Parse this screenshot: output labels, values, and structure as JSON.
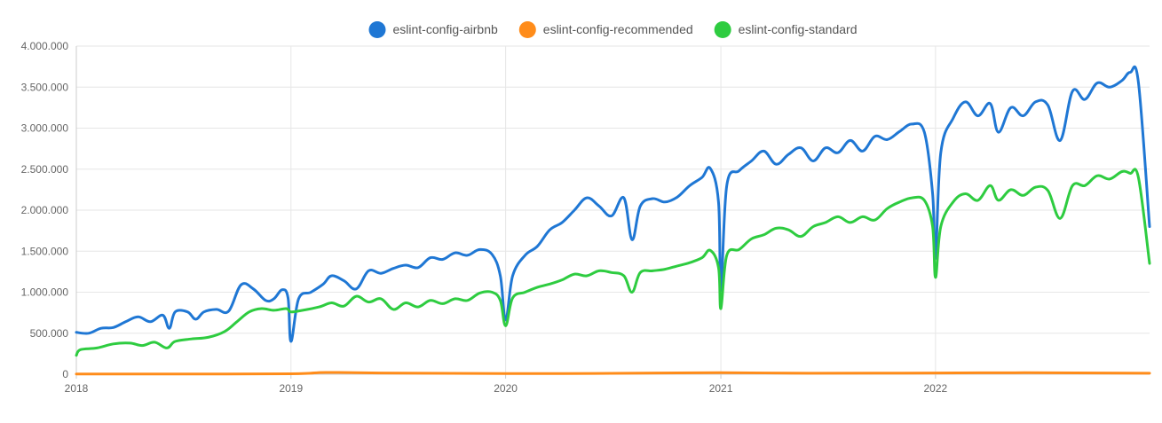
{
  "chart_data": {
    "type": "line",
    "title": "",
    "xlabel": "",
    "ylabel": "",
    "ylim": [
      0,
      4000000
    ],
    "xlim": [
      "2018-01-01",
      "2022-12-31"
    ],
    "grid": true,
    "legend_position": "top-center",
    "y_ticks": [
      {
        "value": 0,
        "label": "0"
      },
      {
        "value": 500000,
        "label": "500.000"
      },
      {
        "value": 1000000,
        "label": "1.000.000"
      },
      {
        "value": 1500000,
        "label": "1.500.000"
      },
      {
        "value": 2000000,
        "label": "2.000.000"
      },
      {
        "value": 2500000,
        "label": "2.500.000"
      },
      {
        "value": 3000000,
        "label": "3.000.000"
      },
      {
        "value": 3500000,
        "label": "3.500.000"
      },
      {
        "value": 4000000,
        "label": "4.000.000"
      }
    ],
    "x_ticks": [
      {
        "value": "2018-01-01",
        "label": "2018"
      },
      {
        "value": "2019-01-01",
        "label": "2019"
      },
      {
        "value": "2020-01-01",
        "label": "2020"
      },
      {
        "value": "2021-01-01",
        "label": "2021"
      },
      {
        "value": "2022-01-01",
        "label": "2022"
      }
    ],
    "series": [
      {
        "name": "eslint-config-airbnb",
        "color": "#1f77d4",
        "points": [
          [
            "2018-01-01",
            510000
          ],
          [
            "2018-01-22",
            500000
          ],
          [
            "2018-02-12",
            560000
          ],
          [
            "2018-03-05",
            570000
          ],
          [
            "2018-03-26",
            640000
          ],
          [
            "2018-04-16",
            700000
          ],
          [
            "2018-05-07",
            640000
          ],
          [
            "2018-05-28",
            720000
          ],
          [
            "2018-06-08",
            560000
          ],
          [
            "2018-06-18",
            760000
          ],
          [
            "2018-07-09",
            760000
          ],
          [
            "2018-07-23",
            670000
          ],
          [
            "2018-08-06",
            760000
          ],
          [
            "2018-08-27",
            790000
          ],
          [
            "2018-09-17",
            770000
          ],
          [
            "2018-10-08",
            1090000
          ],
          [
            "2018-10-29",
            1040000
          ],
          [
            "2018-11-19",
            900000
          ],
          [
            "2018-12-03",
            920000
          ],
          [
            "2018-12-17",
            1030000
          ],
          [
            "2018-12-27",
            930000
          ],
          [
            "2019-01-01",
            400000
          ],
          [
            "2019-01-14",
            920000
          ],
          [
            "2019-02-04",
            1000000
          ],
          [
            "2019-02-25",
            1100000
          ],
          [
            "2019-03-11",
            1200000
          ],
          [
            "2019-04-01",
            1140000
          ],
          [
            "2019-04-22",
            1040000
          ],
          [
            "2019-05-13",
            1260000
          ],
          [
            "2019-06-03",
            1230000
          ],
          [
            "2019-06-24",
            1290000
          ],
          [
            "2019-07-15",
            1330000
          ],
          [
            "2019-08-05",
            1300000
          ],
          [
            "2019-08-26",
            1420000
          ],
          [
            "2019-09-16",
            1400000
          ],
          [
            "2019-10-07",
            1480000
          ],
          [
            "2019-10-28",
            1450000
          ],
          [
            "2019-11-18",
            1520000
          ],
          [
            "2019-12-09",
            1460000
          ],
          [
            "2019-12-23",
            1200000
          ],
          [
            "2020-01-01",
            660000
          ],
          [
            "2020-01-13",
            1200000
          ],
          [
            "2020-02-03",
            1450000
          ],
          [
            "2020-02-24",
            1560000
          ],
          [
            "2020-03-16",
            1760000
          ],
          [
            "2020-04-06",
            1850000
          ],
          [
            "2020-04-27",
            2000000
          ],
          [
            "2020-05-18",
            2150000
          ],
          [
            "2020-06-08",
            2050000
          ],
          [
            "2020-06-29",
            1930000
          ],
          [
            "2020-07-20",
            2150000
          ],
          [
            "2020-08-03",
            1640000
          ],
          [
            "2020-08-17",
            2050000
          ],
          [
            "2020-09-07",
            2140000
          ],
          [
            "2020-09-28",
            2100000
          ],
          [
            "2020-10-19",
            2160000
          ],
          [
            "2020-11-09",
            2300000
          ],
          [
            "2020-11-30",
            2400000
          ],
          [
            "2020-12-14",
            2510000
          ],
          [
            "2020-12-28",
            2100000
          ],
          [
            "2021-01-01",
            1020000
          ],
          [
            "2021-01-11",
            2300000
          ],
          [
            "2021-02-01",
            2480000
          ],
          [
            "2021-02-22",
            2600000
          ],
          [
            "2021-03-15",
            2720000
          ],
          [
            "2021-04-05",
            2560000
          ],
          [
            "2021-04-26",
            2680000
          ],
          [
            "2021-05-17",
            2760000
          ],
          [
            "2021-06-07",
            2600000
          ],
          [
            "2021-06-28",
            2760000
          ],
          [
            "2021-07-19",
            2700000
          ],
          [
            "2021-08-09",
            2850000
          ],
          [
            "2021-08-30",
            2720000
          ],
          [
            "2021-09-20",
            2900000
          ],
          [
            "2021-10-11",
            2860000
          ],
          [
            "2021-11-01",
            2960000
          ],
          [
            "2021-11-22",
            3050000
          ],
          [
            "2021-12-13",
            2950000
          ],
          [
            "2021-12-27",
            2200000
          ],
          [
            "2022-01-01",
            1420000
          ],
          [
            "2022-01-10",
            2700000
          ],
          [
            "2022-01-31",
            3120000
          ],
          [
            "2022-02-21",
            3320000
          ],
          [
            "2022-03-14",
            3150000
          ],
          [
            "2022-04-04",
            3300000
          ],
          [
            "2022-04-18",
            2950000
          ],
          [
            "2022-05-09",
            3250000
          ],
          [
            "2022-05-30",
            3150000
          ],
          [
            "2022-06-20",
            3320000
          ],
          [
            "2022-07-11",
            3280000
          ],
          [
            "2022-08-01",
            2850000
          ],
          [
            "2022-08-22",
            3450000
          ],
          [
            "2022-09-12",
            3350000
          ],
          [
            "2022-10-03",
            3550000
          ],
          [
            "2022-10-24",
            3500000
          ],
          [
            "2022-11-14",
            3580000
          ],
          [
            "2022-11-28",
            3680000
          ],
          [
            "2022-12-12",
            3560000
          ],
          [
            "2022-12-31",
            1800000
          ]
        ]
      },
      {
        "name": "eslint-config-recommended",
        "color": "#ff8c1a",
        "points": [
          [
            "2018-01-01",
            2000
          ],
          [
            "2018-06-01",
            3000
          ],
          [
            "2019-01-01",
            5000
          ],
          [
            "2019-03-01",
            22000
          ],
          [
            "2019-06-01",
            15000
          ],
          [
            "2020-01-01",
            8000
          ],
          [
            "2020-06-01",
            10000
          ],
          [
            "2021-01-01",
            18000
          ],
          [
            "2021-06-01",
            12000
          ],
          [
            "2022-01-01",
            15000
          ],
          [
            "2022-06-01",
            18000
          ],
          [
            "2022-12-31",
            12000
          ]
        ]
      },
      {
        "name": "eslint-config-standard",
        "color": "#2ecc40",
        "points": [
          [
            "2018-01-01",
            230000
          ],
          [
            "2018-01-08",
            300000
          ],
          [
            "2018-02-05",
            320000
          ],
          [
            "2018-03-05",
            370000
          ],
          [
            "2018-04-02",
            380000
          ],
          [
            "2018-04-23",
            350000
          ],
          [
            "2018-05-14",
            390000
          ],
          [
            "2018-06-04",
            320000
          ],
          [
            "2018-06-18",
            400000
          ],
          [
            "2018-07-16",
            430000
          ],
          [
            "2018-08-13",
            450000
          ],
          [
            "2018-09-10",
            520000
          ],
          [
            "2018-10-01",
            640000
          ],
          [
            "2018-10-22",
            760000
          ],
          [
            "2018-11-12",
            800000
          ],
          [
            "2018-12-03",
            780000
          ],
          [
            "2018-12-24",
            800000
          ],
          [
            "2019-01-01",
            760000
          ],
          [
            "2019-01-21",
            780000
          ],
          [
            "2019-02-18",
            820000
          ],
          [
            "2019-03-11",
            870000
          ],
          [
            "2019-04-01",
            830000
          ],
          [
            "2019-04-22",
            950000
          ],
          [
            "2019-05-13",
            880000
          ],
          [
            "2019-06-03",
            920000
          ],
          [
            "2019-06-24",
            790000
          ],
          [
            "2019-07-15",
            870000
          ],
          [
            "2019-08-05",
            820000
          ],
          [
            "2019-08-26",
            900000
          ],
          [
            "2019-09-16",
            860000
          ],
          [
            "2019-10-07",
            920000
          ],
          [
            "2019-10-28",
            900000
          ],
          [
            "2019-11-18",
            990000
          ],
          [
            "2019-12-09",
            1000000
          ],
          [
            "2019-12-23",
            900000
          ],
          [
            "2020-01-01",
            590000
          ],
          [
            "2020-01-13",
            930000
          ],
          [
            "2020-02-03",
            1000000
          ],
          [
            "2020-02-24",
            1060000
          ],
          [
            "2020-03-16",
            1100000
          ],
          [
            "2020-04-06",
            1150000
          ],
          [
            "2020-04-27",
            1220000
          ],
          [
            "2020-05-18",
            1200000
          ],
          [
            "2020-06-08",
            1260000
          ],
          [
            "2020-06-29",
            1240000
          ],
          [
            "2020-07-20",
            1200000
          ],
          [
            "2020-08-03",
            1000000
          ],
          [
            "2020-08-17",
            1240000
          ],
          [
            "2020-09-07",
            1260000
          ],
          [
            "2020-09-28",
            1280000
          ],
          [
            "2020-10-19",
            1320000
          ],
          [
            "2020-11-09",
            1360000
          ],
          [
            "2020-11-30",
            1420000
          ],
          [
            "2020-12-14",
            1510000
          ],
          [
            "2020-12-28",
            1300000
          ],
          [
            "2021-01-01",
            800000
          ],
          [
            "2021-01-11",
            1450000
          ],
          [
            "2021-02-01",
            1520000
          ],
          [
            "2021-02-22",
            1650000
          ],
          [
            "2021-03-15",
            1700000
          ],
          [
            "2021-04-05",
            1780000
          ],
          [
            "2021-04-26",
            1760000
          ],
          [
            "2021-05-17",
            1680000
          ],
          [
            "2021-06-07",
            1800000
          ],
          [
            "2021-06-28",
            1850000
          ],
          [
            "2021-07-19",
            1920000
          ],
          [
            "2021-08-09",
            1850000
          ],
          [
            "2021-08-30",
            1920000
          ],
          [
            "2021-09-20",
            1880000
          ],
          [
            "2021-10-11",
            2020000
          ],
          [
            "2021-11-01",
            2100000
          ],
          [
            "2021-11-22",
            2150000
          ],
          [
            "2021-12-13",
            2120000
          ],
          [
            "2021-12-27",
            1800000
          ],
          [
            "2022-01-01",
            1180000
          ],
          [
            "2022-01-10",
            1800000
          ],
          [
            "2022-01-31",
            2100000
          ],
          [
            "2022-02-21",
            2200000
          ],
          [
            "2022-03-14",
            2120000
          ],
          [
            "2022-04-04",
            2300000
          ],
          [
            "2022-04-18",
            2120000
          ],
          [
            "2022-05-09",
            2250000
          ],
          [
            "2022-05-30",
            2180000
          ],
          [
            "2022-06-20",
            2280000
          ],
          [
            "2022-07-11",
            2240000
          ],
          [
            "2022-08-01",
            1900000
          ],
          [
            "2022-08-22",
            2300000
          ],
          [
            "2022-09-12",
            2300000
          ],
          [
            "2022-10-03",
            2420000
          ],
          [
            "2022-10-24",
            2380000
          ],
          [
            "2022-11-14",
            2470000
          ],
          [
            "2022-11-28",
            2450000
          ],
          [
            "2022-12-12",
            2400000
          ],
          [
            "2022-12-31",
            1350000
          ]
        ]
      }
    ]
  }
}
